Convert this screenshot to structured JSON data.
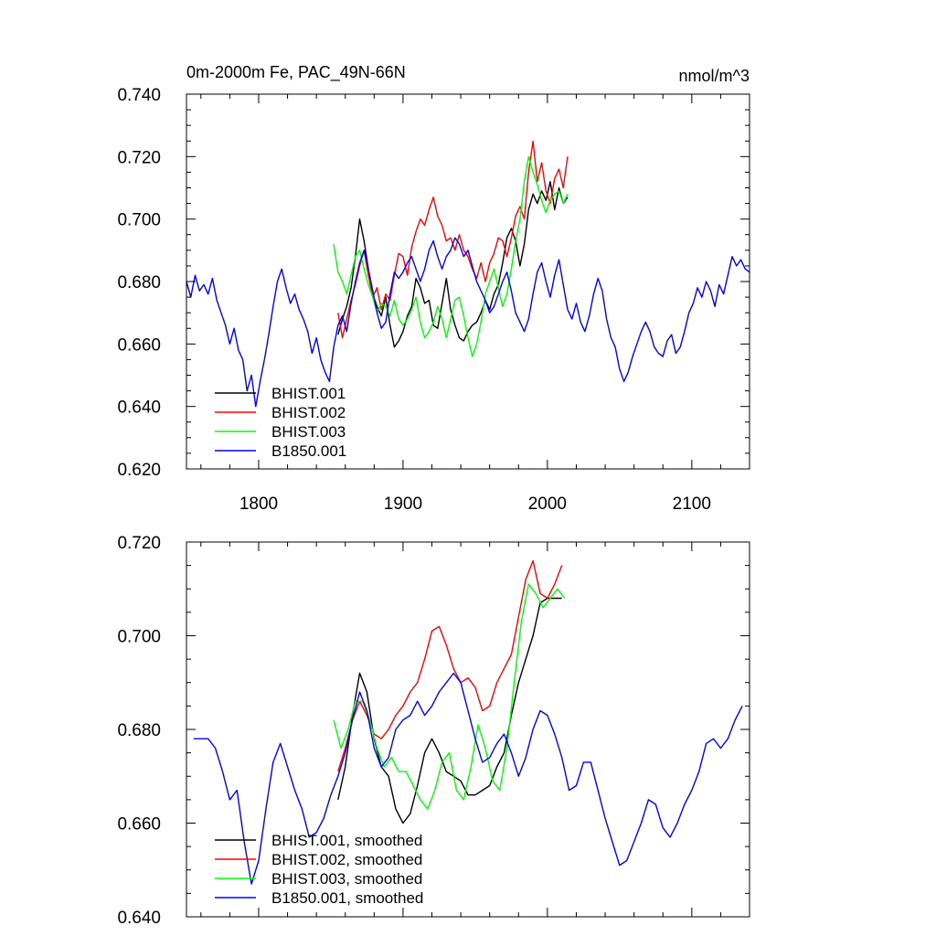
{
  "chart_data": [
    {
      "type": "line",
      "title": "0m-2000m Fe, PAC_49N-66N",
      "units": "nmol/m^3",
      "xlim": [
        1750,
        2140
      ],
      "ylim": [
        0.62,
        0.74
      ],
      "xticks": [
        1800,
        1900,
        2000,
        2100
      ],
      "xtick_labels": [
        "1800",
        "1900",
        "2000",
        "2100"
      ],
      "yticks": [
        0.62,
        0.64,
        0.66,
        0.68,
        0.7,
        0.72,
        0.74
      ],
      "ytick_labels": [
        "0.620",
        "0.640",
        "0.660",
        "0.680",
        "0.700",
        "0.720",
        "0.740"
      ],
      "legend_position": "bottom-left",
      "series": [
        {
          "name": "BHIST.001",
          "color": "#000000",
          "x": [
            1855,
            1858,
            1861,
            1864,
            1867,
            1870,
            1873,
            1876,
            1879,
            1882,
            1885,
            1888,
            1891,
            1894,
            1897,
            1900,
            1903,
            1906,
            1909,
            1912,
            1915,
            1918,
            1921,
            1924,
            1927,
            1930,
            1933,
            1936,
            1939,
            1942,
            1945,
            1948,
            1951,
            1954,
            1957,
            1960,
            1963,
            1966,
            1969,
            1972,
            1975,
            1978,
            1981,
            1984,
            1987,
            1990,
            1993,
            1996,
            1999,
            2002,
            2005,
            2008,
            2011,
            2014
          ],
          "y": [
            0.663,
            0.668,
            0.672,
            0.678,
            0.688,
            0.7,
            0.693,
            0.684,
            0.676,
            0.672,
            0.669,
            0.675,
            0.666,
            0.659,
            0.661,
            0.664,
            0.669,
            0.672,
            0.681,
            0.678,
            0.673,
            0.674,
            0.666,
            0.665,
            0.673,
            0.681,
            0.671,
            0.666,
            0.662,
            0.661,
            0.664,
            0.666,
            0.667,
            0.67,
            0.674,
            0.671,
            0.676,
            0.679,
            0.686,
            0.694,
            0.697,
            0.693,
            0.685,
            0.692,
            0.703,
            0.708,
            0.705,
            0.709,
            0.706,
            0.712,
            0.703,
            0.71,
            0.705,
            0.707
          ]
        },
        {
          "name": "BHIST.002",
          "color": "#ff0000",
          "x": [
            1855,
            1858,
            1861,
            1864,
            1867,
            1870,
            1873,
            1876,
            1879,
            1882,
            1885,
            1888,
            1891,
            1894,
            1897,
            1900,
            1903,
            1906,
            1909,
            1912,
            1915,
            1918,
            1921,
            1924,
            1927,
            1930,
            1933,
            1936,
            1939,
            1942,
            1945,
            1948,
            1951,
            1954,
            1957,
            1960,
            1963,
            1966,
            1969,
            1972,
            1975,
            1978,
            1981,
            1984,
            1987,
            1990,
            1993,
            1996,
            1999,
            2002,
            2005,
            2008,
            2011,
            2014
          ],
          "y": [
            0.67,
            0.662,
            0.668,
            0.674,
            0.679,
            0.685,
            0.69,
            0.682,
            0.675,
            0.678,
            0.671,
            0.676,
            0.674,
            0.682,
            0.689,
            0.688,
            0.682,
            0.691,
            0.696,
            0.7,
            0.698,
            0.703,
            0.707,
            0.701,
            0.698,
            0.693,
            0.694,
            0.69,
            0.695,
            0.69,
            0.688,
            0.684,
            0.681,
            0.686,
            0.68,
            0.686,
            0.689,
            0.694,
            0.693,
            0.688,
            0.694,
            0.701,
            0.704,
            0.7,
            0.715,
            0.725,
            0.712,
            0.718,
            0.709,
            0.705,
            0.713,
            0.716,
            0.71,
            0.72
          ]
        },
        {
          "name": "BHIST.003",
          "color": "#00ff00",
          "x": [
            1852,
            1855,
            1858,
            1861,
            1864,
            1867,
            1870,
            1873,
            1876,
            1879,
            1882,
            1885,
            1888,
            1891,
            1894,
            1897,
            1900,
            1903,
            1906,
            1909,
            1912,
            1915,
            1918,
            1921,
            1924,
            1927,
            1930,
            1933,
            1936,
            1939,
            1942,
            1945,
            1948,
            1951,
            1954,
            1957,
            1960,
            1963,
            1966,
            1969,
            1972,
            1975,
            1978,
            1981,
            1984,
            1987,
            1990,
            1993,
            1996,
            1999,
            2002,
            2005,
            2008,
            2011,
            2014
          ],
          "y": [
            0.692,
            0.683,
            0.68,
            0.676,
            0.682,
            0.688,
            0.69,
            0.684,
            0.679,
            0.675,
            0.67,
            0.673,
            0.672,
            0.669,
            0.674,
            0.668,
            0.666,
            0.668,
            0.671,
            0.675,
            0.667,
            0.662,
            0.664,
            0.667,
            0.672,
            0.668,
            0.662,
            0.668,
            0.674,
            0.675,
            0.669,
            0.662,
            0.656,
            0.66,
            0.667,
            0.676,
            0.68,
            0.684,
            0.678,
            0.672,
            0.676,
            0.684,
            0.693,
            0.7,
            0.712,
            0.72,
            0.715,
            0.711,
            0.706,
            0.702,
            0.706,
            0.708,
            0.709,
            0.705,
            0.708
          ]
        },
        {
          "name": "B1850.001",
          "color": "#0000ff",
          "x": [
            1750,
            1753,
            1756,
            1759,
            1762,
            1765,
            1768,
            1771,
            1774,
            1777,
            1780,
            1783,
            1786,
            1789,
            1792,
            1795,
            1798,
            1801,
            1804,
            1807,
            1810,
            1813,
            1816,
            1819,
            1822,
            1825,
            1828,
            1831,
            1834,
            1837,
            1840,
            1843,
            1846,
            1849,
            1852,
            1855,
            1858,
            1861,
            1864,
            1867,
            1870,
            1873,
            1876,
            1879,
            1882,
            1885,
            1888,
            1891,
            1894,
            1897,
            1900,
            1903,
            1906,
            1909,
            1912,
            1915,
            1918,
            1921,
            1924,
            1927,
            1930,
            1933,
            1936,
            1939,
            1942,
            1945,
            1948,
            1951,
            1954,
            1957,
            1960,
            1963,
            1966,
            1969,
            1972,
            1975,
            1978,
            1981,
            1984,
            1987,
            1990,
            1993,
            1996,
            1999,
            2002,
            2005,
            2008,
            2011,
            2014,
            2017,
            2020,
            2023,
            2026,
            2029,
            2032,
            2035,
            2038,
            2041,
            2044,
            2047,
            2050,
            2053,
            2056,
            2059,
            2062,
            2065,
            2068,
            2071,
            2074,
            2077,
            2080,
            2083,
            2086,
            2089,
            2092,
            2095,
            2098,
            2101,
            2104,
            2107,
            2110,
            2113,
            2116,
            2119,
            2122,
            2125,
            2128,
            2131,
            2134,
            2137,
            2140
          ],
          "y": [
            0.68,
            0.675,
            0.682,
            0.677,
            0.679,
            0.676,
            0.681,
            0.674,
            0.67,
            0.666,
            0.66,
            0.665,
            0.658,
            0.655,
            0.645,
            0.65,
            0.64,
            0.648,
            0.655,
            0.663,
            0.672,
            0.68,
            0.684,
            0.678,
            0.673,
            0.676,
            0.671,
            0.668,
            0.664,
            0.657,
            0.662,
            0.655,
            0.651,
            0.648,
            0.659,
            0.666,
            0.669,
            0.664,
            0.673,
            0.68,
            0.686,
            0.69,
            0.684,
            0.677,
            0.67,
            0.665,
            0.667,
            0.676,
            0.683,
            0.681,
            0.683,
            0.686,
            0.688,
            0.684,
            0.68,
            0.684,
            0.69,
            0.693,
            0.688,
            0.684,
            0.688,
            0.69,
            0.694,
            0.692,
            0.688,
            0.69,
            0.685,
            0.68,
            0.677,
            0.674,
            0.67,
            0.672,
            0.676,
            0.68,
            0.683,
            0.677,
            0.67,
            0.667,
            0.664,
            0.668,
            0.676,
            0.683,
            0.686,
            0.68,
            0.675,
            0.682,
            0.687,
            0.679,
            0.671,
            0.668,
            0.673,
            0.667,
            0.664,
            0.669,
            0.676,
            0.681,
            0.677,
            0.668,
            0.662,
            0.659,
            0.652,
            0.648,
            0.651,
            0.656,
            0.66,
            0.664,
            0.667,
            0.664,
            0.659,
            0.657,
            0.656,
            0.661,
            0.663,
            0.657,
            0.659,
            0.664,
            0.67,
            0.673,
            0.678,
            0.675,
            0.68,
            0.677,
            0.672,
            0.679,
            0.676,
            0.682,
            0.688,
            0.685,
            0.687,
            0.684,
            0.683
          ]
        }
      ]
    },
    {
      "type": "line",
      "xlim": [
        1750,
        2140
      ],
      "ylim": [
        0.64,
        0.72
      ],
      "xticks": [
        1800,
        1900,
        2000,
        2100
      ],
      "yticks": [
        0.64,
        0.66,
        0.68,
        0.7,
        0.72
      ],
      "ytick_labels": [
        "0.640",
        "0.660",
        "0.680",
        "0.700",
        "0.720"
      ],
      "legend_position": "bottom-left",
      "series": [
        {
          "name": "BHIST.001, smoothed",
          "color": "#000000",
          "x": [
            1855,
            1860,
            1865,
            1870,
            1875,
            1880,
            1885,
            1890,
            1895,
            1900,
            1905,
            1910,
            1915,
            1920,
            1925,
            1930,
            1935,
            1940,
            1945,
            1950,
            1955,
            1960,
            1965,
            1970,
            1975,
            1980,
            1985,
            1990,
            1995,
            2000,
            2005,
            2010
          ],
          "y": [
            0.665,
            0.672,
            0.683,
            0.692,
            0.688,
            0.678,
            0.672,
            0.67,
            0.663,
            0.66,
            0.662,
            0.668,
            0.675,
            0.678,
            0.675,
            0.671,
            0.67,
            0.669,
            0.666,
            0.666,
            0.667,
            0.668,
            0.672,
            0.675,
            0.683,
            0.69,
            0.695,
            0.7,
            0.707,
            0.708,
            0.708,
            0.708
          ]
        },
        {
          "name": "BHIST.002, smoothed",
          "color": "#ff0000",
          "x": [
            1855,
            1860,
            1865,
            1870,
            1875,
            1880,
            1885,
            1890,
            1895,
            1900,
            1905,
            1910,
            1915,
            1920,
            1925,
            1930,
            1935,
            1940,
            1945,
            1950,
            1955,
            1960,
            1965,
            1970,
            1975,
            1980,
            1985,
            1990,
            1995,
            2000,
            2005,
            2010
          ],
          "y": [
            0.671,
            0.676,
            0.682,
            0.686,
            0.683,
            0.679,
            0.678,
            0.68,
            0.683,
            0.685,
            0.688,
            0.69,
            0.695,
            0.701,
            0.702,
            0.698,
            0.693,
            0.69,
            0.691,
            0.689,
            0.684,
            0.685,
            0.69,
            0.693,
            0.696,
            0.704,
            0.712,
            0.716,
            0.709,
            0.708,
            0.711,
            0.715
          ]
        },
        {
          "name": "BHIST.003, smoothed",
          "color": "#00ff00",
          "x": [
            1852,
            1857,
            1862,
            1867,
            1872,
            1877,
            1882,
            1887,
            1892,
            1897,
            1902,
            1907,
            1912,
            1917,
            1922,
            1927,
            1932,
            1937,
            1942,
            1947,
            1952,
            1957,
            1962,
            1967,
            1972,
            1977,
            1982,
            1987,
            1992,
            1997,
            2002,
            2007,
            2012
          ],
          "y": [
            0.682,
            0.676,
            0.68,
            0.686,
            0.686,
            0.682,
            0.676,
            0.672,
            0.674,
            0.671,
            0.671,
            0.668,
            0.665,
            0.663,
            0.667,
            0.673,
            0.675,
            0.667,
            0.665,
            0.672,
            0.681,
            0.676,
            0.669,
            0.667,
            0.676,
            0.69,
            0.703,
            0.711,
            0.709,
            0.706,
            0.708,
            0.71,
            0.708
          ]
        },
        {
          "name": "B1850.001, smoothed",
          "color": "#0000ff",
          "x": [
            1755,
            1760,
            1765,
            1770,
            1775,
            1780,
            1785,
            1790,
            1795,
            1800,
            1805,
            1810,
            1815,
            1820,
            1825,
            1830,
            1835,
            1840,
            1845,
            1850,
            1855,
            1860,
            1865,
            1870,
            1875,
            1880,
            1885,
            1890,
            1895,
            1900,
            1905,
            1910,
            1915,
            1920,
            1925,
            1930,
            1935,
            1940,
            1945,
            1950,
            1955,
            1960,
            1965,
            1970,
            1975,
            1980,
            1985,
            1990,
            1995,
            2000,
            2005,
            2010,
            2015,
            2020,
            2025,
            2030,
            2035,
            2040,
            2045,
            2050,
            2055,
            2060,
            2065,
            2070,
            2075,
            2080,
            2085,
            2090,
            2095,
            2100,
            2105,
            2110,
            2115,
            2120,
            2125,
            2130,
            2135
          ],
          "y": [
            0.678,
            0.678,
            0.678,
            0.676,
            0.671,
            0.665,
            0.667,
            0.656,
            0.647,
            0.652,
            0.663,
            0.673,
            0.677,
            0.672,
            0.667,
            0.663,
            0.657,
            0.658,
            0.661,
            0.666,
            0.67,
            0.675,
            0.682,
            0.688,
            0.684,
            0.676,
            0.672,
            0.674,
            0.68,
            0.682,
            0.683,
            0.686,
            0.683,
            0.685,
            0.688,
            0.69,
            0.692,
            0.69,
            0.684,
            0.678,
            0.673,
            0.674,
            0.677,
            0.679,
            0.675,
            0.67,
            0.674,
            0.68,
            0.684,
            0.683,
            0.679,
            0.674,
            0.667,
            0.668,
            0.673,
            0.673,
            0.667,
            0.661,
            0.656,
            0.651,
            0.652,
            0.656,
            0.66,
            0.665,
            0.664,
            0.659,
            0.657,
            0.66,
            0.664,
            0.667,
            0.671,
            0.677,
            0.678,
            0.676,
            0.678,
            0.682,
            0.685
          ]
        }
      ]
    }
  ]
}
